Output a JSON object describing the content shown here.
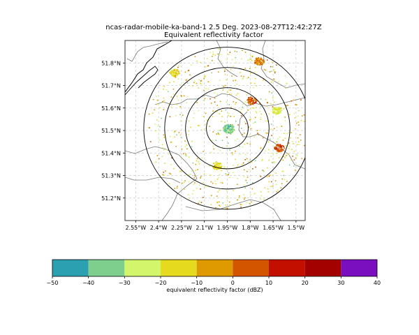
{
  "chart_data": {
    "type": "heatmap",
    "title": "ncas-radar-mobile-ka-band-1 2.5 Deg. 2023-08-27T12:42:27Z",
    "subtitle": "Equivalent reflectivity factor",
    "map": {
      "lon_range": [
        -2.62,
        -1.44
      ],
      "lat_range": [
        51.1,
        51.9
      ],
      "lon_ticks": [
        -2.55,
        -2.4,
        -2.25,
        -2.1,
        -1.95,
        -1.8,
        -1.65,
        -1.5
      ],
      "lon_tick_labels": [
        "2.55°W",
        "2.4°W",
        "2.25°W",
        "2.1°W",
        "1.95°W",
        "1.8°W",
        "1.65°W",
        "1.5°W"
      ],
      "lat_ticks": [
        51.2,
        51.3,
        51.4,
        51.5,
        51.6,
        51.7,
        51.8
      ],
      "lat_tick_labels": [
        "51.2°N",
        "51.3°N",
        "51.4°N",
        "51.5°N",
        "51.6°N",
        "51.7°N",
        "51.8°N"
      ],
      "grid": true,
      "radar_center": [
        -1.95,
        51.51
      ],
      "range_rings_lat_deg": [
        0.09,
        0.18,
        0.27,
        0.36
      ],
      "echo_clusters": [
        {
          "lon": -1.945,
          "lat": 51.51,
          "dbz": -35
        },
        {
          "lon": -1.795,
          "lat": 51.635,
          "dbz": 5
        },
        {
          "lon": -1.615,
          "lat": 51.425,
          "dbz": 5
        },
        {
          "lon": -1.745,
          "lat": 51.81,
          "dbz": 0
        },
        {
          "lon": -2.02,
          "lat": 51.345,
          "dbz": -15
        },
        {
          "lon": -2.3,
          "lat": 51.76,
          "dbz": -15
        },
        {
          "lon": -1.63,
          "lat": 51.59,
          "dbz": -20
        }
      ]
    },
    "colorbar": {
      "label": "equivalent reflectivity factor (dBZ)",
      "bounds": [
        -50,
        -40,
        -30,
        -20,
        -10,
        0,
        10,
        20,
        30,
        40
      ],
      "tick_labels": [
        "−50",
        "−40",
        "−30",
        "−20",
        "−10",
        "0",
        "10",
        "20",
        "30",
        "40"
      ],
      "colors": [
        "#2aa0b0",
        "#7ecf8e",
        "#d2f56b",
        "#e6da1e",
        "#de9a00",
        "#d45500",
        "#c30f00",
        "#a30000",
        "#7a0fc0"
      ]
    }
  }
}
